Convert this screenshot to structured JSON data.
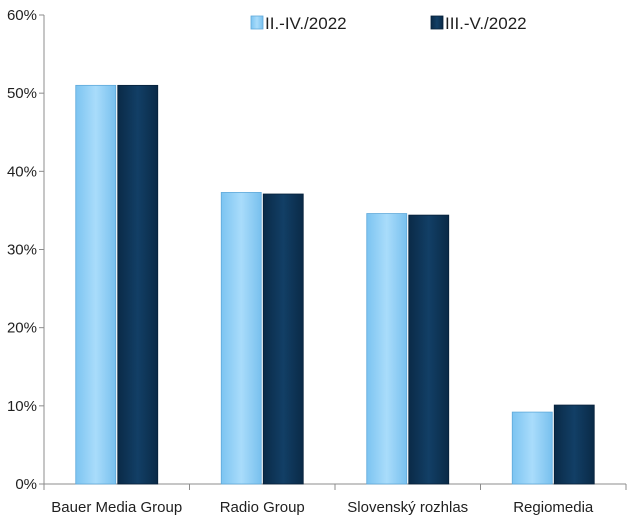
{
  "chart_data": {
    "type": "bar",
    "categories": [
      "Bauer Media Group",
      "Radio Group",
      "Slovenský rozhlas",
      "Regiomedia"
    ],
    "series": [
      {
        "name": "II.-IV./2022",
        "values": [
          51.0,
          37.3,
          34.6,
          9.2
        ],
        "color": "#8fd0f7"
      },
      {
        "name": "III.-V./2022",
        "values": [
          51.0,
          37.1,
          34.4,
          10.1
        ],
        "color": "#0d3556"
      }
    ],
    "yticks": [
      "0%",
      "10%",
      "20%",
      "30%",
      "40%",
      "50%",
      "60%"
    ],
    "ylim": [
      0,
      60
    ],
    "ytick_step": 10,
    "legend_position": "top-right",
    "grid": false
  }
}
